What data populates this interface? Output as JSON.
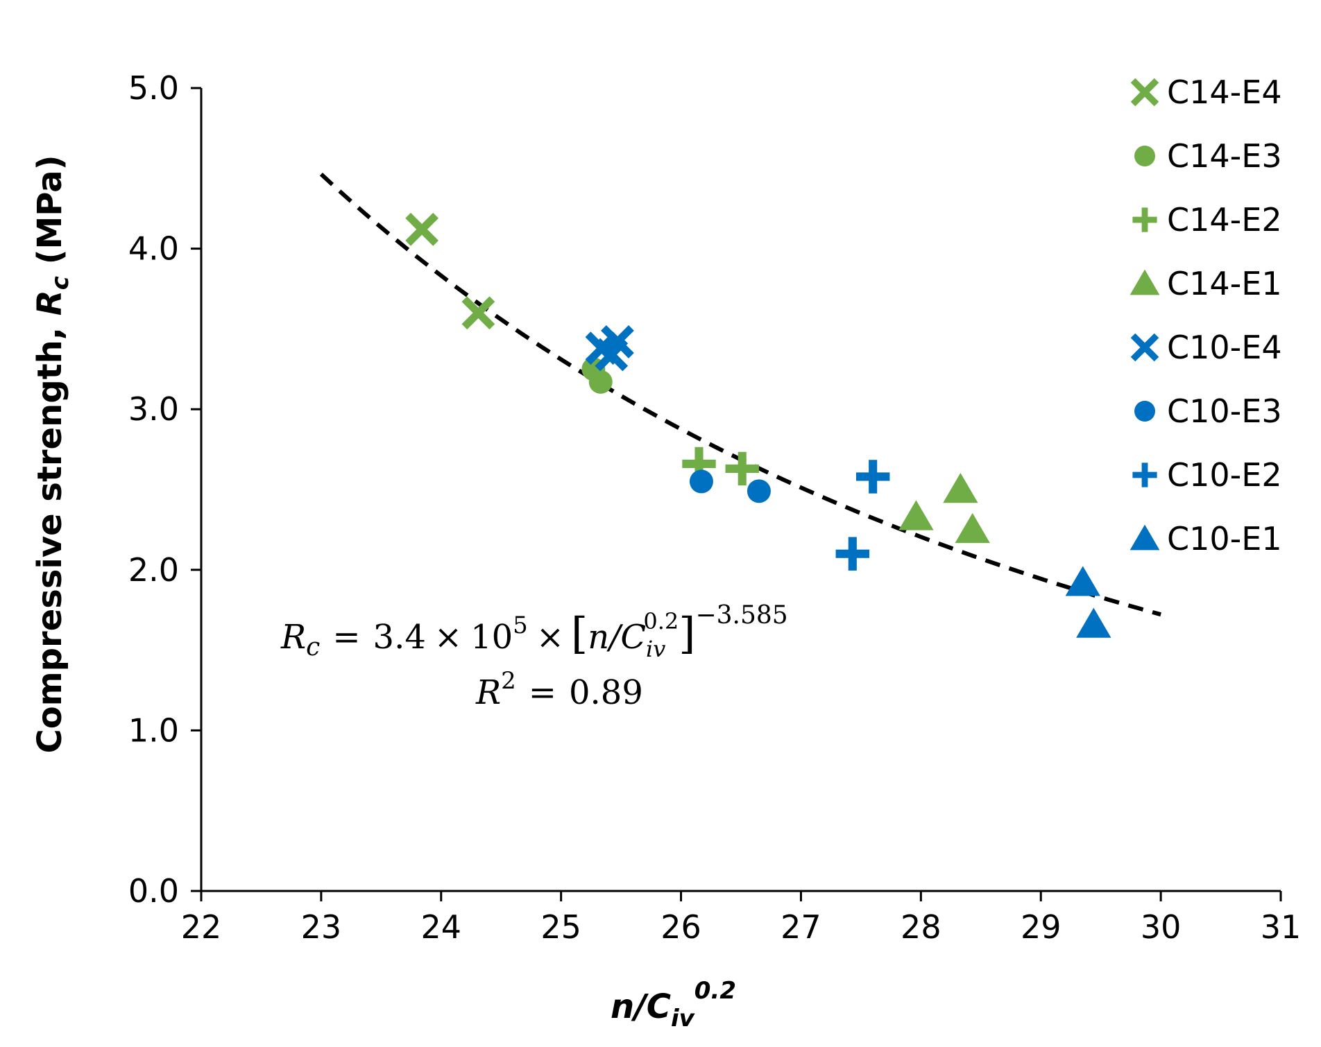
{
  "chart_data": {
    "type": "scatter",
    "title": "",
    "xlabel": "n/C_iv^0.2",
    "ylabel": "Compressive strength, R_c (MPa)",
    "xlabel_parts": {
      "main": "n/C",
      "sub": "iv",
      "sup": "0.2"
    },
    "ylabel_parts": {
      "prefix": "Compressive strength, ",
      "var": "R",
      "sub": "c",
      "suffix": " (MPa)"
    },
    "xlim": [
      22,
      31
    ],
    "ylim": [
      0,
      5
    ],
    "xticks": [
      22,
      23,
      24,
      25,
      26,
      27,
      28,
      29,
      30,
      31
    ],
    "xtick_labels": [
      "22",
      "23",
      "24",
      "25",
      "26",
      "27",
      "28",
      "29",
      "30",
      "31"
    ],
    "yticks": [
      0,
      1,
      2,
      3,
      4,
      5
    ],
    "ytick_labels": [
      "0.0",
      "1.0",
      "2.0",
      "3.0",
      "4.0",
      "5.0"
    ],
    "grid": false,
    "legend_position": "top-right",
    "series": [
      {
        "name": "C14-E4",
        "marker": "x",
        "color": "#70AD47",
        "x": [
          23.84,
          24.31
        ],
        "y": [
          4.12,
          3.6
        ]
      },
      {
        "name": "C14-E3",
        "marker": "circle",
        "color": "#70AD47",
        "x": [
          25.27,
          25.33
        ],
        "y": [
          3.25,
          3.17
        ]
      },
      {
        "name": "C14-E2",
        "marker": "plus",
        "color": "#70AD47",
        "x": [
          26.15,
          26.51
        ],
        "y": [
          2.66,
          2.63
        ]
      },
      {
        "name": "C14-E1",
        "marker": "triangle",
        "color": "#70AD47",
        "x": [
          27.96,
          28.33,
          28.43
        ],
        "y": [
          2.33,
          2.5,
          2.25
        ]
      },
      {
        "name": "C10-E4",
        "marker": "x",
        "color": "#0070C0",
        "x": [
          25.34,
          25.42,
          25.47
        ],
        "y": [
          3.38,
          3.34,
          3.42
        ]
      },
      {
        "name": "C10-E3",
        "marker": "circle",
        "color": "#0070C0",
        "x": [
          26.17,
          26.65
        ],
        "y": [
          2.55,
          2.49
        ]
      },
      {
        "name": "C10-E2",
        "marker": "plus",
        "color": "#0070C0",
        "x": [
          27.43,
          27.6
        ],
        "y": [
          2.1,
          2.58
        ]
      },
      {
        "name": "C10-E1",
        "marker": "triangle",
        "color": "#0070C0",
        "x": [
          29.35,
          29.44
        ],
        "y": [
          1.92,
          1.66
        ]
      }
    ],
    "trendline": {
      "type": "power",
      "a": 340000,
      "b": -3.585,
      "x_range": [
        23,
        30
      ],
      "style": "dashed",
      "color": "#000000"
    },
    "annotations": {
      "equation": {
        "lhs_var": "R",
        "lhs_sub": "c",
        "eq": "=",
        "coef": "3.4",
        "times": "×",
        "base": "10",
        "exp": "5",
        "lbracket": "[",
        "frac": "n/C",
        "frac_sub": "iv",
        "frac_sup": "0.2",
        "rbracket": "]",
        "power": "−3.585"
      },
      "r_squared": {
        "var": "R",
        "sup": "2",
        "eq": "=",
        "value": "0.89"
      }
    }
  }
}
